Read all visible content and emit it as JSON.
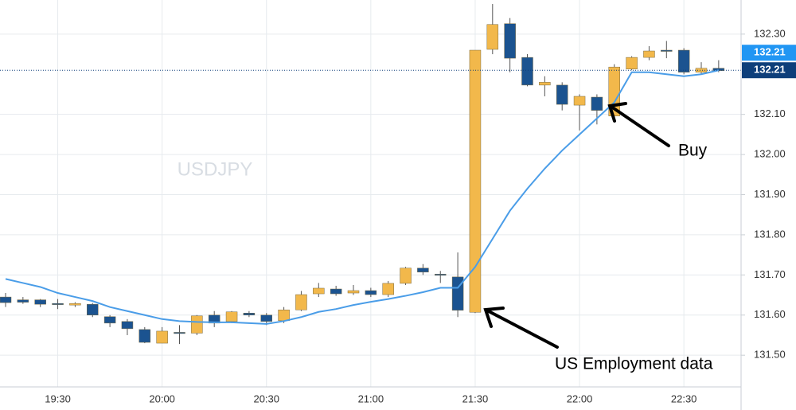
{
  "chart_data": {
    "type": "candlestick",
    "watermark": "USDJPY",
    "categories": [
      null,
      null,
      null,
      "19:30",
      null,
      null,
      null,
      null,
      null,
      "20:00",
      null,
      null,
      null,
      null,
      null,
      "20:30",
      null,
      null,
      null,
      null,
      null,
      "21:00",
      null,
      null,
      null,
      null,
      null,
      "21:30",
      null,
      null,
      null,
      null,
      null,
      "22:00",
      null,
      null,
      null,
      null,
      null,
      "22:30",
      null,
      null
    ],
    "open": [
      131.645,
      131.638,
      131.638,
      131.629,
      131.625,
      131.627,
      131.596,
      131.584,
      131.564,
      131.53,
      131.557,
      131.555,
      131.6,
      131.584,
      131.605,
      131.6,
      131.586,
      131.613,
      131.653,
      131.665,
      131.655,
      131.661,
      131.651,
      131.679,
      131.717,
      131.702,
      131.695,
      131.607,
      132.262,
      132.326,
      132.242,
      132.173,
      132.173,
      132.123,
      132.143,
      132.096,
      132.213,
      132.242,
      132.26,
      132.26,
      132.205,
      132.215
    ],
    "high": [
      131.655,
      131.645,
      131.64,
      131.64,
      131.632,
      131.63,
      131.6,
      131.59,
      131.57,
      131.57,
      131.575,
      131.6,
      131.61,
      131.61,
      131.61,
      131.605,
      131.62,
      131.66,
      131.68,
      131.673,
      131.675,
      131.668,
      131.685,
      131.72,
      131.727,
      131.71,
      131.756,
      132.26,
      132.375,
      132.34,
      132.25,
      132.195,
      132.18,
      132.15,
      132.15,
      132.225,
      132.245,
      132.27,
      132.283,
      132.265,
      132.23,
      132.235
    ],
    "low": [
      131.62,
      131.628,
      131.62,
      131.615,
      131.62,
      131.595,
      131.57,
      131.55,
      131.53,
      131.53,
      131.528,
      131.55,
      131.57,
      131.58,
      131.595,
      131.575,
      131.58,
      131.61,
      131.645,
      131.648,
      131.65,
      131.645,
      131.645,
      131.675,
      131.7,
      131.68,
      131.595,
      131.605,
      132.25,
      132.205,
      132.17,
      132.145,
      132.11,
      132.06,
      132.075,
      132.09,
      132.21,
      132.235,
      132.24,
      132.2,
      132.2,
      132.205
    ],
    "close": [
      131.631,
      131.632,
      131.627,
      131.628,
      131.629,
      131.6,
      131.58,
      131.566,
      131.532,
      131.56,
      131.555,
      131.598,
      131.58,
      131.608,
      131.6,
      131.584,
      131.613,
      131.651,
      131.667,
      131.653,
      131.661,
      131.651,
      131.679,
      131.717,
      131.707,
      131.7,
      131.612,
      132.26,
      132.324,
      132.24,
      132.173,
      132.18,
      132.125,
      132.145,
      132.11,
      132.218,
      132.242,
      132.258,
      132.258,
      132.205,
      132.215,
      132.209
    ],
    "up_color": "#f2b84b",
    "down_color": "#1b5390",
    "moving_average": {
      "color": "#4a9de8",
      "values": [
        131.69,
        131.68,
        131.67,
        131.655,
        131.645,
        131.635,
        131.62,
        131.61,
        131.6,
        131.59,
        131.585,
        131.583,
        131.582,
        131.582,
        131.58,
        131.578,
        131.585,
        131.595,
        131.608,
        131.615,
        131.625,
        131.633,
        131.64,
        131.648,
        131.657,
        131.668,
        131.668,
        131.72,
        131.79,
        131.86,
        131.915,
        131.965,
        132.01,
        132.05,
        132.09,
        132.13,
        132.205,
        132.205,
        132.2,
        132.195,
        132.2,
        132.21
      ]
    },
    "ma_label": {
      "value": 132.21,
      "color": "#2196f3"
    },
    "last_price": {
      "value": 132.21,
      "color": "#0e3f7a"
    },
    "ylim": [
      131.423,
      132.385
    ],
    "yticks": [
      {
        "value": 131.5,
        "label": "131.50"
      },
      {
        "value": 131.6,
        "label": "131.60"
      },
      {
        "value": 131.7,
        "label": "131.70"
      },
      {
        "value": 131.8,
        "label": "131.80"
      },
      {
        "value": 131.9,
        "label": "131.90"
      },
      {
        "value": 132.0,
        "label": "132.00"
      },
      {
        "value": 132.1,
        "label": "132.10"
      },
      {
        "value": 132.3,
        "label": "132.30"
      }
    ],
    "grid": true,
    "annotations": [
      "Buy",
      "US Employment data"
    ]
  }
}
